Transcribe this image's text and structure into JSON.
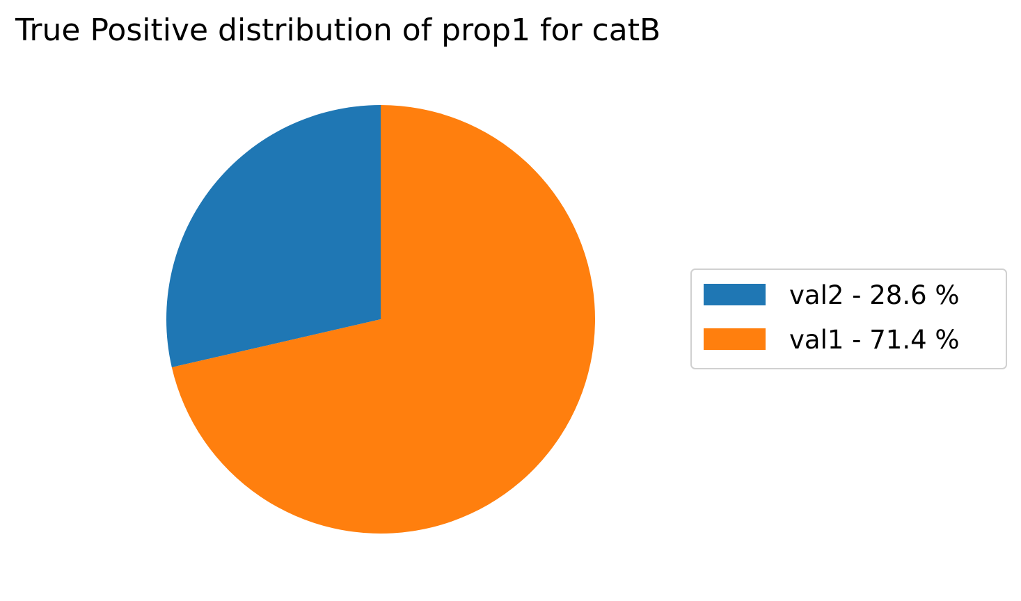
{
  "chart_data": {
    "type": "pie",
    "title": "True Positive distribution of prop1 for catB",
    "slices": [
      {
        "label": "val2",
        "value": 28.6,
        "legend_label": "val2 - 28.6 %",
        "color": "#1f77b4"
      },
      {
        "label": "val1",
        "value": 71.4,
        "legend_label": "val1 - 71.4 %",
        "color": "#ff7f0e"
      }
    ],
    "start_angle_deg": 90,
    "direction": "counterclockwise",
    "legend": {
      "placement": "center-right",
      "frame": true
    }
  }
}
